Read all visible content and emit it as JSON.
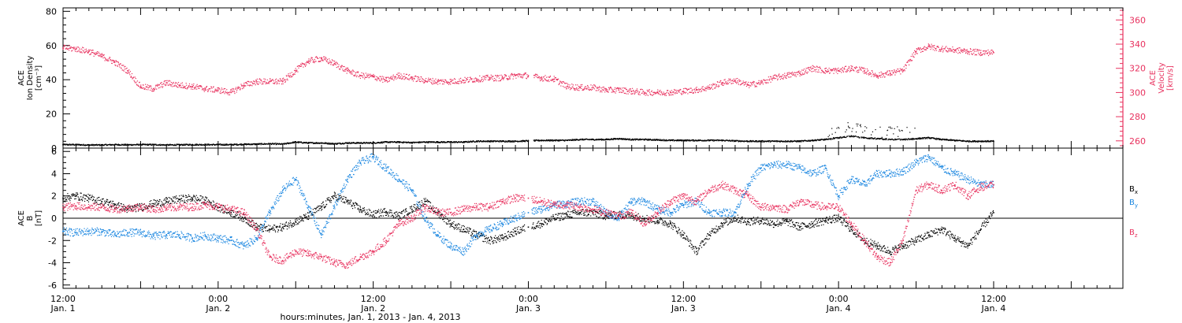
{
  "chart_data": [
    {
      "type": "scatter",
      "panel": "top",
      "left_ylabel": [
        "ACE",
        "Ion Density",
        "[cm⁻³]"
      ],
      "right_ylabel": [
        "ACE",
        "Velocity",
        "[km/s]"
      ],
      "ylim_left": [
        0,
        82
      ],
      "yticks_left": [
        0,
        20,
        40,
        60,
        80
      ],
      "ylim_right": [
        254,
        370
      ],
      "yticks_right": [
        260,
        280,
        300,
        320,
        340,
        360
      ],
      "colors": {
        "density": "#000000",
        "velocity": "#e8325f"
      },
      "series": [
        {
          "key": "density",
          "axis": "left",
          "x": [
            0,
            2,
            4,
            6,
            8,
            10,
            12,
            14,
            16,
            18,
            20,
            22,
            24,
            26,
            28,
            30,
            32,
            34,
            36,
            38,
            40,
            42,
            44,
            46,
            48,
            50,
            52,
            54,
            56,
            58,
            60,
            62,
            64,
            66,
            68,
            70,
            72,
            74,
            76,
            78,
            80,
            82,
            84,
            86,
            88,
            90,
            92,
            94,
            96,
            98,
            100,
            102,
            104,
            106,
            108,
            110,
            112,
            114,
            116,
            118,
            120,
            122,
            124,
            126,
            128,
            130,
            132,
            134,
            136,
            138,
            140,
            142,
            144
          ],
          "y": [
            2,
            2,
            1.8,
            1.8,
            2,
            1.9,
            2,
            2,
            1.8,
            1.9,
            2,
            2,
            2,
            2,
            2.2,
            2.3,
            2.5,
            2.3,
            3.5,
            3,
            3,
            2.5,
            3,
            3,
            3,
            3.5,
            3.5,
            3.2,
            3.5,
            3.5,
            3.5,
            3.5,
            4,
            4,
            4,
            4,
            4.2,
            4.5,
            4.5,
            4.5,
            5,
            5,
            5,
            5.5,
            5,
            5,
            4.8,
            4.5,
            4.5,
            4.5,
            4.5,
            4.5,
            4.2,
            4,
            4,
            4,
            4,
            4,
            4.5,
            5,
            6,
            7,
            6,
            5.5,
            5,
            5,
            5.5,
            6,
            5,
            4.5,
            4,
            4,
            4
          ]
        },
        {
          "key": "velocity",
          "axis": "right",
          "x": [
            0,
            2,
            4,
            6,
            8,
            10,
            12,
            14,
            16,
            18,
            20,
            22,
            24,
            26,
            28,
            30,
            32,
            34,
            36,
            38,
            40,
            42,
            44,
            46,
            48,
            50,
            52,
            54,
            56,
            58,
            60,
            62,
            64,
            66,
            68,
            70,
            72,
            74,
            76,
            78,
            80,
            82,
            84,
            86,
            88,
            90,
            92,
            94,
            96,
            98,
            100,
            102,
            104,
            106,
            108,
            110,
            112,
            114,
            116,
            118,
            120,
            122,
            124,
            126,
            128,
            130,
            132,
            134,
            136,
            138,
            140,
            142,
            144
          ],
          "y": [
            337,
            336,
            334,
            330,
            325,
            318,
            305,
            303,
            308,
            306,
            305,
            303,
            302,
            300,
            306,
            309,
            309,
            309,
            318,
            326,
            328,
            324,
            318,
            314,
            313,
            310,
            314,
            312,
            310,
            309,
            309,
            310,
            311,
            312,
            312,
            314,
            314,
            312,
            311,
            305,
            304,
            304,
            302,
            302,
            301,
            300,
            300,
            300,
            301,
            302,
            304,
            308,
            310,
            306,
            308,
            312,
            314,
            316,
            320,
            318,
            318,
            320,
            318,
            314,
            316,
            318,
            334,
            338,
            336,
            335,
            334,
            333,
            333
          ]
        }
      ]
    },
    {
      "type": "scatter",
      "panel": "bottom",
      "left_ylabel": [
        "ACE",
        "B",
        "[nT]"
      ],
      "ylim": [
        -6.3,
        6.3
      ],
      "yticks": [
        -6,
        -4,
        -2,
        0,
        2,
        4,
        6
      ],
      "legend": [
        {
          "label": "B",
          "sub": "x",
          "color": "#000000"
        },
        {
          "label": "B",
          "sub": "y",
          "color": "#1a86e0"
        },
        {
          "label": "B",
          "sub": "z",
          "color": "#e8325f"
        }
      ],
      "series": [
        {
          "key": "Bx",
          "color": "#000000",
          "x": [
            0,
            2,
            4,
            6,
            8,
            10,
            12,
            14,
            16,
            18,
            20,
            22,
            24,
            26,
            28,
            30,
            32,
            34,
            36,
            38,
            40,
            42,
            44,
            46,
            48,
            50,
            52,
            54,
            56,
            58,
            60,
            62,
            64,
            66,
            68,
            70,
            72,
            74,
            76,
            78,
            80,
            82,
            84,
            86,
            88,
            90,
            92,
            94,
            96,
            98,
            100,
            102,
            104,
            106,
            108,
            110,
            112,
            114,
            116,
            118,
            120,
            122,
            124,
            126,
            128,
            130,
            132,
            134,
            136,
            138,
            140,
            142,
            144
          ],
          "y": [
            1.8,
            2,
            1.8,
            1.5,
            1.2,
            0.8,
            1,
            1.3,
            1.5,
            1.7,
            1.8,
            1.6,
            1,
            0.5,
            0,
            -0.8,
            -1,
            -0.8,
            -0.3,
            0.2,
            1,
            2,
            1.5,
            0.8,
            0.3,
            0.6,
            0.2,
            0.8,
            1.5,
            0.5,
            -0.5,
            -1,
            -1.5,
            -2,
            -1.8,
            -1.2,
            -0.8,
            -0.5,
            0,
            0.3,
            0.5,
            0.5,
            0.2,
            0.3,
            0.2,
            0,
            -0.2,
            -0.5,
            -1.5,
            -3,
            -1.5,
            -0.5,
            0,
            -0.3,
            -0.2,
            -0.5,
            -0.3,
            -0.8,
            -0.5,
            -0.2,
            0,
            -1,
            -2,
            -2.5,
            -3,
            -2.5,
            -2,
            -1.5,
            -1,
            -1.8,
            -2.5,
            -1,
            0.5
          ]
        },
        {
          "key": "By",
          "color": "#1a86e0",
          "x": [
            0,
            2,
            4,
            6,
            8,
            10,
            12,
            14,
            16,
            18,
            20,
            22,
            24,
            26,
            28,
            30,
            32,
            34,
            36,
            38,
            40,
            42,
            44,
            46,
            48,
            50,
            52,
            54,
            56,
            58,
            60,
            62,
            64,
            66,
            68,
            70,
            72,
            74,
            76,
            78,
            80,
            82,
            84,
            86,
            88,
            90,
            92,
            94,
            96,
            98,
            100,
            102,
            104,
            106,
            108,
            110,
            112,
            114,
            116,
            118,
            120,
            122,
            124,
            126,
            128,
            130,
            132,
            134,
            136,
            138,
            140,
            142,
            144
          ],
          "y": [
            -1.2,
            -1.3,
            -1.2,
            -1.2,
            -1.5,
            -1.3,
            -1.3,
            -1.6,
            -1.5,
            -1.5,
            -1.8,
            -1.6,
            -1.8,
            -2,
            -2.5,
            -1.8,
            0.5,
            2.5,
            3.5,
            1,
            -1.5,
            1,
            3.5,
            5,
            5.5,
            4.5,
            3.5,
            2.5,
            0,
            -1.5,
            -2.5,
            -3,
            -1.5,
            -1,
            -0.5,
            0,
            0.5,
            0.8,
            1.2,
            1.3,
            1.5,
            1.5,
            0.5,
            0,
            1.5,
            1.5,
            0.8,
            0.5,
            1.2,
            1.5,
            0.5,
            0.5,
            0.5,
            3,
            4.5,
            4.8,
            4.8,
            4.5,
            4,
            4.5,
            2,
            3.5,
            3,
            4,
            4,
            4.2,
            5,
            5.5,
            4.5,
            4,
            3.5,
            3,
            3
          ]
        },
        {
          "key": "Bz",
          "color": "#e8325f",
          "x": [
            0,
            2,
            4,
            6,
            8,
            10,
            12,
            14,
            16,
            18,
            20,
            22,
            24,
            26,
            28,
            30,
            32,
            34,
            36,
            38,
            40,
            42,
            44,
            46,
            48,
            50,
            52,
            54,
            56,
            58,
            60,
            62,
            64,
            66,
            68,
            70,
            72,
            74,
            76,
            78,
            80,
            82,
            84,
            86,
            88,
            90,
            92,
            94,
            96,
            98,
            100,
            102,
            104,
            106,
            108,
            110,
            112,
            114,
            116,
            118,
            120,
            122,
            124,
            126,
            128,
            130,
            132,
            134,
            136,
            138,
            140,
            142,
            144
          ],
          "y": [
            1,
            1.1,
            1,
            1,
            0.8,
            0.9,
            1,
            0.8,
            0.9,
            1,
            1,
            1.2,
            1,
            0.8,
            0.5,
            -1,
            -3.5,
            -3.8,
            -3,
            -3.2,
            -3.5,
            -4,
            -4.2,
            -3.5,
            -3,
            -2,
            -0.5,
            0,
            1,
            0.5,
            0.5,
            0.8,
            1,
            1,
            1.5,
            1.8,
            1.8,
            1.5,
            1.2,
            1.2,
            1,
            0.8,
            0.5,
            0.2,
            0.5,
            -0.5,
            0.5,
            1.5,
            2,
            1.5,
            2.5,
            3,
            2.5,
            2,
            1,
            1,
            0.8,
            1.5,
            1.2,
            1,
            1,
            -0.5,
            -2,
            -3.5,
            -4,
            -2,
            2.5,
            3,
            2.5,
            3,
            2,
            2.8,
            3
          ]
        }
      ]
    }
  ],
  "x_axis": {
    "range_hours": [
      0,
      164
    ],
    "labels": [
      {
        "hour": 0,
        "time": "12:00",
        "date": "Jan. 1"
      },
      {
        "hour": 24,
        "time": "0:00",
        "date": "Jan. 2"
      },
      {
        "hour": 48,
        "time": "12:00",
        "date": "Jan. 2"
      },
      {
        "hour": 72,
        "time": "0:00",
        "date": "Jan. 3"
      },
      {
        "hour": 96,
        "time": "12:00",
        "date": "Jan. 3"
      },
      {
        "hour": 120,
        "time": "0:00",
        "date": "Jan. 4"
      },
      {
        "hour": 144,
        "time": "12:00",
        "date": "Jan. 4"
      }
    ],
    "xlabel": "hours:minutes, Jan. 1, 2013 - Jan. 4, 2013"
  }
}
